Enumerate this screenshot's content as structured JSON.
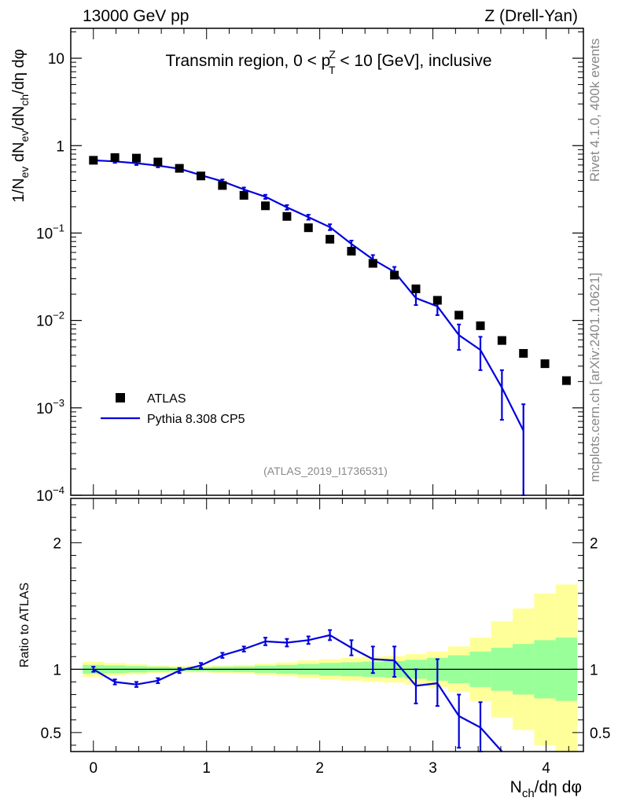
{
  "header": {
    "left": "13000 GeV pp",
    "right": "Z (Drell-Yan)"
  },
  "side": {
    "top": "Rivet 4.1.0,  400k events",
    "bottom": "mcplots.cern.ch [arXiv:2401.10621]"
  },
  "colors": {
    "data": "#000000",
    "mc": "#0000dd",
    "band_inner": "#99ff99",
    "band_outer": "#ffff99"
  },
  "chart_data": [
    {
      "type": "scatter",
      "title": "Transmin region, 0 < pTZ < 10 [GeV], inclusive",
      "title_parts": {
        "pre": "Transmin region, 0 < p",
        "sup": "Z",
        "sub": "T",
        "post": " < 10 [GeV], inclusive"
      },
      "watermark": "(ATLAS_2019_I1736531)",
      "ylabel": "1/Nev dNev/dNch/dη dφ",
      "yscale": "log",
      "ylim": [
        0.0001,
        22
      ],
      "xlim": [
        -0.2,
        4.33
      ],
      "yticks": [
        {
          "v": 10,
          "base": "10",
          "exp": ""
        },
        {
          "v": 1,
          "base": "1",
          "exp": ""
        },
        {
          "v": 0.1,
          "base": "10",
          "exp": "−1"
        },
        {
          "v": 0.01,
          "base": "10",
          "exp": "−2"
        },
        {
          "v": 0.001,
          "base": "10",
          "exp": "−3"
        },
        {
          "v": 0.0001,
          "base": "10",
          "exp": "−4"
        }
      ],
      "legend": {
        "position": "lower-left",
        "entries": [
          "ATLAS",
          "Pythia 8.308 CP5"
        ]
      },
      "series": [
        {
          "name": "ATLAS",
          "style": "markers",
          "x": [
            0,
            0.19,
            0.38,
            0.57,
            0.76,
            0.95,
            1.14,
            1.33,
            1.52,
            1.71,
            1.9,
            2.09,
            2.28,
            2.47,
            2.66,
            2.85,
            3.04,
            3.23,
            3.42,
            3.61,
            3.8,
            3.99,
            4.18
          ],
          "y": [
            0.68,
            0.73,
            0.72,
            0.65,
            0.55,
            0.45,
            0.35,
            0.27,
            0.205,
            0.155,
            0.115,
            0.085,
            0.062,
            0.045,
            0.033,
            0.023,
            0.017,
            0.0115,
            0.0087,
            0.0059,
            0.0042,
            0.0032,
            0.00205
          ]
        },
        {
          "name": "Pythia 8.308 CP5",
          "style": "line",
          "x": [
            0,
            0.19,
            0.38,
            0.57,
            0.76,
            0.95,
            1.14,
            1.33,
            1.52,
            1.71,
            1.9,
            2.09,
            2.28,
            2.47,
            2.66,
            2.85,
            3.04,
            3.23,
            3.42,
            3.61,
            3.8
          ],
          "y": [
            0.68,
            0.66,
            0.63,
            0.59,
            0.545,
            0.46,
            0.39,
            0.315,
            0.26,
            0.197,
            0.152,
            0.117,
            0.075,
            0.05,
            0.036,
            0.018,
            0.0145,
            0.0068,
            0.0046,
            0.0017,
            0.00055
          ],
          "ylo": [
            0.65,
            0.635,
            0.6,
            0.565,
            0.52,
            0.44,
            0.37,
            0.298,
            0.246,
            0.185,
            0.142,
            0.108,
            0.068,
            0.044,
            0.031,
            0.015,
            0.0115,
            0.0046,
            0.0027,
            0.00073,
            5e-05
          ],
          "yhi": [
            0.71,
            0.685,
            0.66,
            0.615,
            0.57,
            0.48,
            0.41,
            0.332,
            0.274,
            0.209,
            0.162,
            0.126,
            0.082,
            0.056,
            0.041,
            0.021,
            0.0175,
            0.009,
            0.0065,
            0.0027,
            0.0011
          ]
        }
      ]
    },
    {
      "type": "line",
      "ylabel": "Ratio to ATLAS",
      "xlabel": "Nch/dη dφ",
      "ylim": [
        0.35,
        2.35
      ],
      "xlim": [
        -0.2,
        4.33
      ],
      "yticks": [
        0.5,
        1,
        2
      ],
      "ytick_labels": [
        "0.5",
        "1",
        "2"
      ],
      "xticks": [
        0,
        1,
        2,
        3,
        4
      ],
      "xtick_labels": [
        "0",
        "1",
        "2",
        "3",
        "4"
      ],
      "bands": {
        "edges": [
          -0.095,
          0.095,
          0.285,
          0.475,
          0.665,
          0.855,
          1.045,
          1.235,
          1.425,
          1.615,
          1.805,
          1.995,
          2.185,
          2.375,
          2.565,
          2.755,
          2.945,
          3.135,
          3.325,
          3.515,
          3.705,
          3.895,
          4.085,
          4.275
        ],
        "outer_lo": [
          0.94,
          0.95,
          0.96,
          0.97,
          0.975,
          0.975,
          0.97,
          0.965,
          0.955,
          0.945,
          0.93,
          0.92,
          0.91,
          0.9,
          0.895,
          0.88,
          0.86,
          0.82,
          0.75,
          0.62,
          0.52,
          0.4,
          0.35
        ],
        "outer_hi": [
          1.06,
          1.05,
          1.04,
          1.03,
          1.025,
          1.025,
          1.03,
          1.035,
          1.045,
          1.055,
          1.07,
          1.08,
          1.09,
          1.1,
          1.105,
          1.12,
          1.14,
          1.18,
          1.25,
          1.38,
          1.48,
          1.6,
          1.67
        ],
        "inner_lo": [
          0.965,
          0.97,
          0.975,
          0.98,
          0.985,
          0.985,
          0.98,
          0.978,
          0.972,
          0.965,
          0.958,
          0.95,
          0.945,
          0.94,
          0.935,
          0.925,
          0.91,
          0.89,
          0.86,
          0.83,
          0.8,
          0.77,
          0.75
        ],
        "inner_hi": [
          1.035,
          1.03,
          1.025,
          1.02,
          1.015,
          1.015,
          1.02,
          1.022,
          1.028,
          1.035,
          1.042,
          1.05,
          1.055,
          1.06,
          1.065,
          1.075,
          1.09,
          1.11,
          1.14,
          1.17,
          1.2,
          1.23,
          1.25
        ]
      },
      "series": [
        {
          "name": "Pythia 8.308 CP5 / ATLAS",
          "x": [
            0,
            0.19,
            0.38,
            0.57,
            0.76,
            0.95,
            1.14,
            1.33,
            1.52,
            1.71,
            1.9,
            2.09,
            2.28,
            2.47,
            2.66,
            2.85,
            3.04,
            3.23,
            3.42,
            3.61
          ],
          "y": [
            1.0,
            0.9,
            0.88,
            0.91,
            0.99,
            1.03,
            1.11,
            1.16,
            1.22,
            1.21,
            1.23,
            1.27,
            1.17,
            1.08,
            1.07,
            0.87,
            0.89,
            0.63,
            0.54,
            0.3
          ],
          "ylo": [
            0.98,
            0.88,
            0.86,
            0.89,
            0.97,
            1.01,
            1.09,
            1.14,
            1.19,
            1.18,
            1.2,
            1.23,
            1.11,
            0.97,
            0.94,
            0.73,
            0.71,
            0.38,
            0.33,
            0.3
          ],
          "yhi": [
            1.02,
            0.92,
            0.9,
            0.93,
            1.01,
            1.05,
            1.13,
            1.18,
            1.25,
            1.24,
            1.26,
            1.31,
            1.23,
            1.18,
            1.18,
            1.0,
            1.08,
            0.8,
            0.74,
            0.3
          ]
        }
      ]
    }
  ]
}
